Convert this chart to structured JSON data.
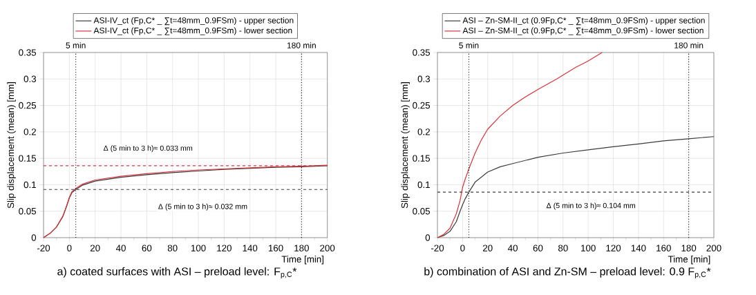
{
  "chart_data": [
    {
      "type": "line",
      "title": "a) coated surfaces with ASI – preload level: F$_{p,C}$*",
      "xlabel": "Time [min]",
      "ylabel": "Slip displacement (mean) [mm]",
      "xlim": [
        -20,
        200
      ],
      "xticks": [
        -20,
        0,
        20,
        40,
        60,
        80,
        100,
        120,
        140,
        160,
        180,
        200
      ],
      "ylim": [
        0,
        0.35
      ],
      "yticks": [
        0,
        0.05,
        0.1,
        0.15,
        0.2,
        0.25,
        0.3,
        0.35
      ],
      "grid": true,
      "legend": "top",
      "line_style": "solid",
      "marker": "none",
      "series": [
        {
          "name": "ASI-IV_ct (Fp,C* _ ∑t=48mm_0.9FSm) - upper section",
          "color": "#3a3a3a",
          "x": [
            -20,
            -15,
            -10,
            -5,
            -2,
            0,
            2,
            5,
            10,
            20,
            40,
            60,
            80,
            100,
            120,
            140,
            160,
            180,
            200
          ],
          "values": [
            0,
            0.008,
            0.02,
            0.04,
            0.06,
            0.075,
            0.085,
            0.091,
            0.099,
            0.107,
            0.114,
            0.119,
            0.123,
            0.126,
            0.129,
            0.131,
            0.133,
            0.134,
            0.136
          ]
        },
        {
          "name": "ASI-IV_ct (Fp,C* _ ∑t=48mm_0.9FSm) - lower section",
          "color": "#d9323a",
          "x": [
            -20,
            -15,
            -10,
            -5,
            -2,
            0,
            2,
            5,
            10,
            20,
            40,
            60,
            80,
            100,
            120,
            140,
            160,
            180,
            200
          ],
          "values": [
            0,
            0.008,
            0.02,
            0.041,
            0.061,
            0.076,
            0.087,
            0.093,
            0.101,
            0.109,
            0.116,
            0.121,
            0.125,
            0.128,
            0.13,
            0.132,
            0.134,
            0.135,
            0.137
          ]
        }
      ],
      "ref_lines": [
        {
          "axis": "x",
          "value": 5,
          "label": "5 min",
          "color": "#000000",
          "line_style": "dotted"
        },
        {
          "axis": "x",
          "value": 180,
          "label": "180 min",
          "color": "#000000",
          "line_style": "dotted"
        },
        {
          "axis": "y",
          "value": 0.136,
          "color": "#d9323a",
          "line_style": "dashed"
        },
        {
          "axis": "y",
          "value": 0.091,
          "color": "#3a3a3a",
          "line_style": "dashed"
        }
      ],
      "annotations": [
        "Δ (5 min to 3 h)≈ 0.033 mm",
        "Δ (5 min to 3 h)≈ 0.032 mm"
      ]
    },
    {
      "type": "line",
      "title": "b) combination of ASI and Zn-SM – preload level: 0.9 F$_{p,C}$*",
      "xlabel": "Time [min]",
      "ylabel": "Slip displacement (mean) [mm]",
      "xlim": [
        -20,
        200
      ],
      "xticks": [
        -20,
        0,
        20,
        40,
        60,
        80,
        100,
        120,
        140,
        160,
        180,
        200
      ],
      "ylim": [
        0,
        0.35
      ],
      "yticks": [
        0,
        0.05,
        0.1,
        0.15,
        0.2,
        0.25,
        0.3,
        0.35
      ],
      "grid": true,
      "legend": "top",
      "line_style": "solid",
      "marker": "none",
      "series": [
        {
          "name": "ASI – Zn-SM-II_ct (0.9Fp,C* _ ∑t=48mm_0.9FSm) - upper section",
          "color": "#3a3a3a",
          "x": [
            -20,
            -15,
            -10,
            -5,
            -2,
            0,
            2,
            5,
            10,
            20,
            30,
            40,
            60,
            80,
            100,
            120,
            140,
            160,
            180,
            200
          ],
          "values": [
            0,
            0.004,
            0.012,
            0.03,
            0.05,
            0.062,
            0.073,
            0.086,
            0.105,
            0.124,
            0.134,
            0.14,
            0.152,
            0.16,
            0.166,
            0.172,
            0.177,
            0.183,
            0.187,
            0.191
          ]
        },
        {
          "name": "ASI – Zn-SM-II_ct (0.9Fp,C* _ ∑t=48mm_0.9FSm) - lower section",
          "color": "#d9323a",
          "x": [
            -20,
            -15,
            -10,
            -5,
            -2,
            0,
            2,
            5,
            10,
            15,
            20,
            30,
            40,
            50,
            60,
            75,
            90,
            100,
            111
          ],
          "values": [
            0,
            0.006,
            0.018,
            0.045,
            0.07,
            0.095,
            0.11,
            0.13,
            0.16,
            0.185,
            0.205,
            0.23,
            0.25,
            0.266,
            0.28,
            0.3,
            0.322,
            0.334,
            0.35
          ]
        }
      ],
      "ref_lines": [
        {
          "axis": "x",
          "value": 5,
          "label": "5 min",
          "color": "#000000",
          "line_style": "dotted"
        },
        {
          "axis": "x",
          "value": 180,
          "label": "180 min",
          "color": "#000000",
          "line_style": "dotted"
        },
        {
          "axis": "y",
          "value": 0.086,
          "color": "#3a3a3a",
          "line_style": "dashed"
        }
      ],
      "annotations": [
        "Δ (5 min to 3 h)≈ 0.104 mm"
      ]
    }
  ]
}
